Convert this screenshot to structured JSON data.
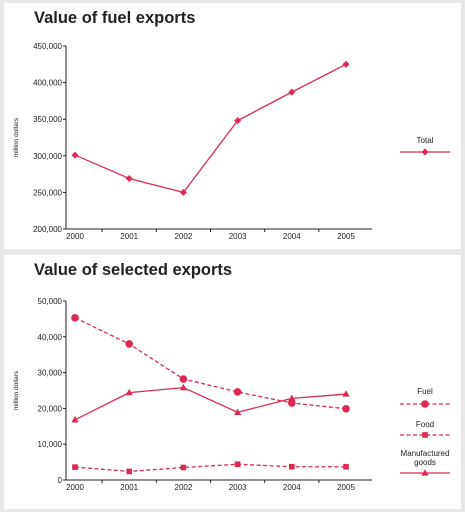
{
  "chart_data": [
    {
      "type": "line",
      "title": "Value of fuel exports",
      "ylabel": "million dollars",
      "xlabel": "",
      "x": [
        "2000",
        "2001",
        "2002",
        "2003",
        "2004",
        "2005"
      ],
      "ylim": [
        200000,
        450000
      ],
      "yticks": [
        "200,000",
        "250,000",
        "300,000",
        "350,000",
        "400,000",
        "450,000"
      ],
      "ytick_values": [
        200000,
        250000,
        300000,
        350000,
        400000,
        450000
      ],
      "legend_position": "right",
      "series": [
        {
          "name": "Total",
          "values": [
            301000,
            269000,
            250000,
            348000,
            387000,
            425000
          ],
          "style": "solid",
          "marker": "diamond",
          "color": "#dc2a52"
        }
      ]
    },
    {
      "type": "line",
      "title": "Value of selected exports",
      "ylabel": "million dollars",
      "xlabel": "",
      "x": [
        "2000",
        "2001",
        "2002",
        "2003",
        "2004",
        "2005"
      ],
      "ylim": [
        0,
        50000
      ],
      "yticks": [
        "0",
        "10,000",
        "20,000",
        "30,000",
        "40,000",
        "50,000"
      ],
      "ytick_values": [
        0,
        10000,
        20000,
        30000,
        40000,
        50000
      ],
      "legend_position": "right",
      "series": [
        {
          "name": "Fuel",
          "values": [
            45300,
            38000,
            28200,
            24600,
            21500,
            19900
          ],
          "style": "dashed",
          "marker": "circle",
          "color": "#dc2a52"
        },
        {
          "name": "Food",
          "values": [
            3600,
            2400,
            3500,
            4400,
            3700,
            3700
          ],
          "style": "dashed",
          "marker": "square",
          "color": "#dc2a52"
        },
        {
          "name": "Manufactured goods",
          "values": [
            16800,
            24400,
            25800,
            18900,
            22800,
            24000
          ],
          "style": "solid",
          "marker": "triangle",
          "color": "#dc2a52"
        }
      ]
    }
  ]
}
